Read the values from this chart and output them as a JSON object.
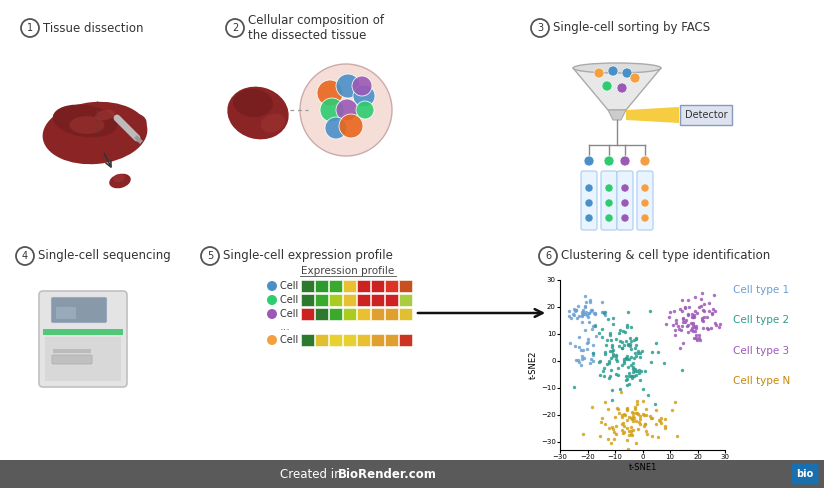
{
  "background_color": "#ffffff",
  "step_labels": [
    "Tissue dissection",
    "Cellular composition of\nthe dissected tissue",
    "Single-cell sorting by FACS",
    "Single-cell sequencing",
    "Single-cell expression profile",
    "Clustering & cell type identification"
  ],
  "step_numbers": [
    "1",
    "2",
    "3",
    "4",
    "5",
    "6"
  ],
  "tsne_colors": [
    "#6b9fd4",
    "#2a9d8f",
    "#9b59b6",
    "#d4a017"
  ],
  "tsne_labels": [
    "Cell type 1",
    "Cell type 2",
    "Cell type 3",
    "Cell type N"
  ],
  "tsne_label_colors": [
    "#6b9fd4",
    "#2a9d8f",
    "#9b59b6",
    "#c8870a"
  ],
  "footer_bg": "#5a5a5a",
  "liver_color": "#8B2525",
  "liver_highlight": "#a03535",
  "cell_colors": [
    "#E8671E",
    "#4a90c8",
    "#2ecc71",
    "#9b59b6"
  ],
  "facs_tube_colors": [
    "#4a90c8",
    "#2ecc71",
    "#9b59b6",
    "#F5A040"
  ],
  "heatmap_rows": [
    [
      "#2d7a2d",
      "#2d9a2d",
      "#3aaa2d",
      "#e8c030",
      "#cc2222",
      "#cc2222",
      "#dd3322",
      "#c85020"
    ],
    [
      "#2d7a2d",
      "#3aaa2d",
      "#aacc20",
      "#e8c030",
      "#cc2222",
      "#cc2222",
      "#cc2222",
      "#aacc40"
    ],
    [
      "#cc2222",
      "#2d7a2d",
      "#3aaa2d",
      "#aacc20",
      "#e8c030",
      "#e0a030",
      "#e0a030",
      "#e0c030"
    ],
    [
      "#2d7a2d",
      "#e0c030",
      "#e8d030",
      "#e8d030",
      "#e8c030",
      "#e0a030",
      "#e0a030",
      "#cc3322"
    ]
  ],
  "cell_dot_colors": [
    "#4a90c8",
    "#2ecc71",
    "#9b59b6",
    "#F5A040"
  ],
  "cell_names": [
    "Cell 1",
    "Cell 2",
    "Cell 3",
    "Cell N"
  ]
}
